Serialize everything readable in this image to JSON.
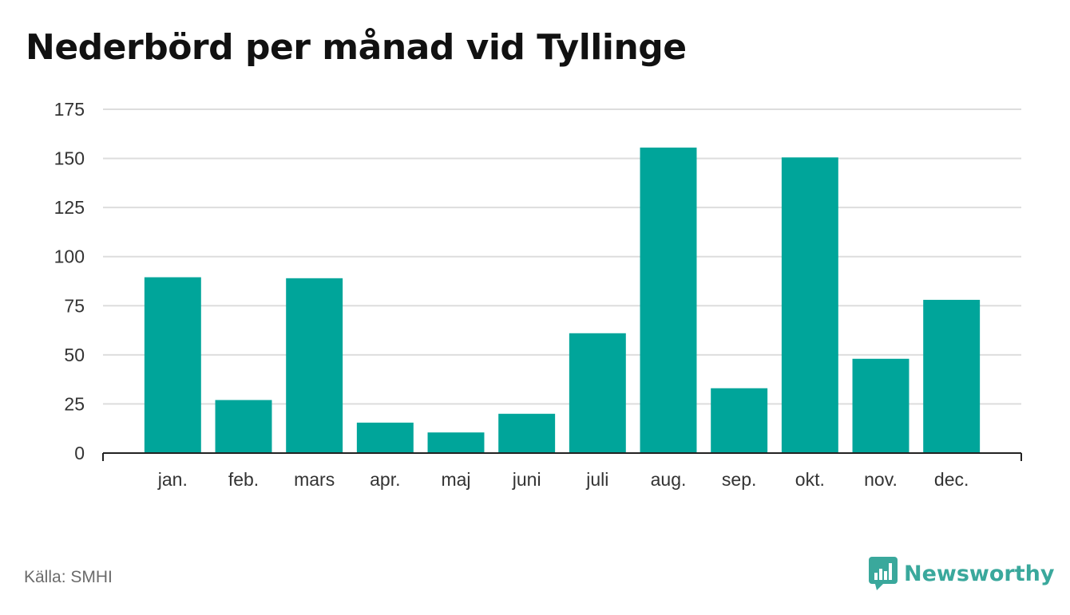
{
  "title": "Nederbörd per månad vid Tyllinge",
  "source": "Källa: SMHI",
  "brand": {
    "name": "Newsworthy",
    "icon": "newsworthy-logo-icon"
  },
  "colors": {
    "bar": "#00a59a",
    "grid": "#dddddd",
    "axis": "#222222",
    "text": "#333333",
    "brand": "#3aa89c"
  },
  "chart_data": {
    "type": "bar",
    "title": "Nederbörd per månad vid Tyllinge",
    "categories": [
      "jan.",
      "feb.",
      "mars",
      "apr.",
      "maj",
      "juni",
      "juli",
      "aug.",
      "sep.",
      "okt.",
      "nov.",
      "dec."
    ],
    "values": [
      89.5,
      27,
      89,
      15.5,
      10.5,
      20,
      61,
      155.5,
      33,
      150.5,
      48,
      78
    ],
    "ylim": [
      0,
      175
    ],
    "yticks": [
      0,
      25,
      50,
      75,
      100,
      125,
      150,
      175
    ],
    "grid": true,
    "xlabel": "",
    "ylabel": ""
  }
}
